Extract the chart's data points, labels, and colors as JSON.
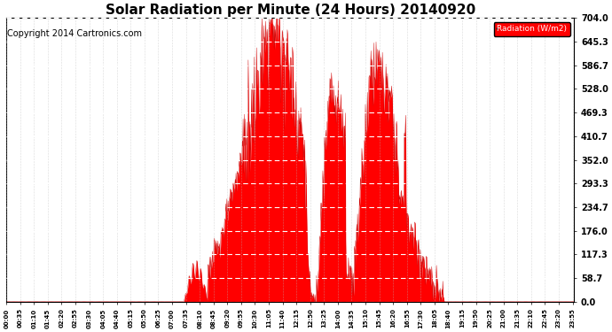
{
  "title": "Solar Radiation per Minute (24 Hours) 20140920",
  "copyright": "Copyright 2014 Cartronics.com",
  "legend_label": "Radiation (W/m2)",
  "ylim": [
    0.0,
    704.0
  ],
  "yticks": [
    0.0,
    58.7,
    117.3,
    176.0,
    234.7,
    293.3,
    352.0,
    410.7,
    469.3,
    528.0,
    586.7,
    645.3,
    704.0
  ],
  "fill_color": "#FF0000",
  "line_color": "#CC0000",
  "bg_color": "#FFFFFF",
  "dashed_line_color": "#FF0000",
  "title_fontsize": 11,
  "copyright_fontsize": 7,
  "legend_bg": "#FF0000",
  "legend_text_color": "#FFFFFF",
  "tick_interval": 35
}
